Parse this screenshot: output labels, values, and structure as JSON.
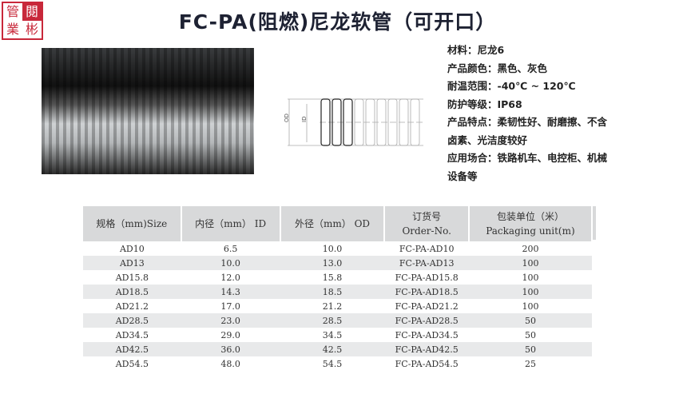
{
  "seal": {
    "chars": [
      "管",
      "閱",
      "業",
      "彬"
    ]
  },
  "title": "FC-PA(阻燃)尼龙软管（可开口）",
  "diagram": {
    "od_label": "OD",
    "id_label": "ID"
  },
  "specs": [
    "材料：尼龙6",
    "产品颜色：黑色、灰色",
    "耐温范围：-40℃ ~ 120℃",
    "防护等级：IP68",
    "产品特点：柔韧性好、耐磨擦、不含",
    "卤素、光洁度较好",
    "应用场合：铁路机车、电控柜、机械",
    "设备等"
  ],
  "table": {
    "headers": [
      [
        "规格（mm)Size",
        ""
      ],
      [
        "内径（mm） ID",
        ""
      ],
      [
        "外径（mm） OD",
        ""
      ],
      [
        "订货号",
        "Order-No."
      ],
      [
        "包装单位（米）",
        "Packaging unit(m)"
      ]
    ],
    "rows": [
      [
        "AD10",
        "6.5",
        "10.0",
        "FC-PA-AD10",
        "200"
      ],
      [
        "AD13",
        "10.0",
        "13.0",
        "FC-PA-AD13",
        "100"
      ],
      [
        "AD15.8",
        "12.0",
        "15.8",
        "FC-PA-AD15.8",
        "100"
      ],
      [
        "AD18.5",
        "14.3",
        "18.5",
        "FC-PA-AD18.5",
        "100"
      ],
      [
        "AD21.2",
        "17.0",
        "21.2",
        "FC-PA-AD21.2",
        "100"
      ],
      [
        "AD28.5",
        "23.0",
        "28.5",
        "FC-PA-AD28.5",
        "50"
      ],
      [
        "AD34.5",
        "29.0",
        "34.5",
        "FC-PA-AD34.5",
        "50"
      ],
      [
        "AD42.5",
        "36.0",
        "42.5",
        "FC-PA-AD42.5",
        "50"
      ],
      [
        "AD54.5",
        "48.0",
        "54.5",
        "FC-PA-AD54.5",
        "25"
      ]
    ]
  }
}
